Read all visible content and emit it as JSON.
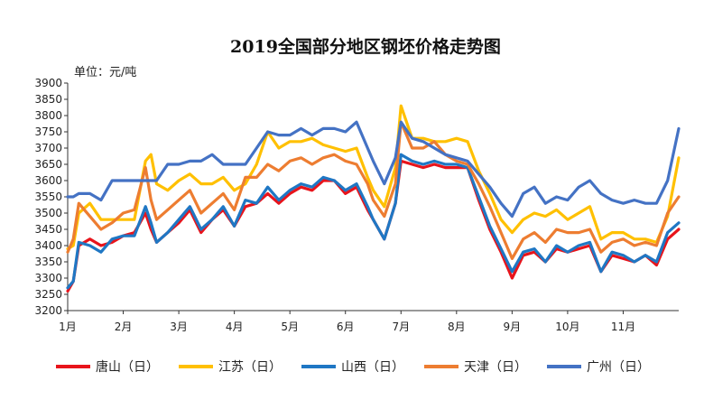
{
  "chart_data": {
    "type": "line",
    "title": "2019全国部分地区钢坯价格走势图",
    "ylabel": "单位：元/吨",
    "xlabel": "",
    "ylim": [
      3200,
      3900
    ],
    "yticks": [
      3200,
      3250,
      3300,
      3350,
      3400,
      3450,
      3500,
      3550,
      3600,
      3650,
      3700,
      3750,
      3800,
      3850,
      3900
    ],
    "x_month_range": [
      1,
      12
    ],
    "x_ticks": [
      {
        "label": "1月",
        "x": 1
      },
      {
        "label": "2月",
        "x": 2
      },
      {
        "label": "3月",
        "x": 3
      },
      {
        "label": "4月",
        "x": 4
      },
      {
        "label": "5月",
        "x": 5
      },
      {
        "label": "6月",
        "x": 6
      },
      {
        "label": "7月",
        "x": 7
      },
      {
        "label": "8月",
        "x": 8
      },
      {
        "label": "9月",
        "x": 9
      },
      {
        "label": "10月",
        "x": 10
      },
      {
        "label": "11月",
        "x": 11
      }
    ],
    "legend_position": "bottom",
    "grid": false,
    "series": [
      {
        "name": "唐山（日）",
        "color": "#e8141b",
        "x": [
          1.0,
          1.1,
          1.2,
          1.4,
          1.6,
          1.8,
          2.0,
          2.2,
          2.4,
          2.5,
          2.6,
          2.8,
          3.0,
          3.2,
          3.4,
          3.6,
          3.8,
          4.0,
          4.2,
          4.4,
          4.6,
          4.8,
          5.0,
          5.2,
          5.4,
          5.6,
          5.8,
          6.0,
          6.2,
          6.4,
          6.5,
          6.7,
          6.9,
          7.0,
          7.2,
          7.4,
          7.6,
          7.8,
          8.0,
          8.2,
          8.4,
          8.6,
          8.8,
          9.0,
          9.2,
          9.4,
          9.6,
          9.8,
          10.0,
          10.2,
          10.4,
          10.6,
          10.8,
          11.0,
          11.2,
          11.4,
          11.6,
          11.8,
          12.0
        ],
        "y": [
          3260,
          3290,
          3400,
          3420,
          3400,
          3410,
          3430,
          3440,
          3500,
          3450,
          3410,
          3440,
          3470,
          3510,
          3440,
          3480,
          3510,
          3460,
          3520,
          3530,
          3560,
          3530,
          3560,
          3580,
          3570,
          3600,
          3600,
          3560,
          3580,
          3510,
          3480,
          3420,
          3530,
          3660,
          3650,
          3640,
          3650,
          3640,
          3640,
          3640,
          3540,
          3450,
          3380,
          3300,
          3370,
          3380,
          3350,
          3390,
          3380,
          3390,
          3400,
          3320,
          3370,
          3360,
          3350,
          3370,
          3340,
          3420,
          3450
        ]
      },
      {
        "name": "江苏（日）",
        "color": "#ffc000",
        "x": [
          1.0,
          1.1,
          1.2,
          1.4,
          1.6,
          1.8,
          2.0,
          2.2,
          2.4,
          2.5,
          2.6,
          2.8,
          3.0,
          3.2,
          3.4,
          3.6,
          3.8,
          4.0,
          4.2,
          4.4,
          4.6,
          4.8,
          5.0,
          5.2,
          5.4,
          5.6,
          5.8,
          6.0,
          6.2,
          6.4,
          6.5,
          6.7,
          6.9,
          7.0,
          7.2,
          7.4,
          7.6,
          7.8,
          8.0,
          8.2,
          8.4,
          8.6,
          8.8,
          9.0,
          9.2,
          9.4,
          9.6,
          9.8,
          10.0,
          10.2,
          10.4,
          10.6,
          10.8,
          11.0,
          11.2,
          11.4,
          11.6,
          11.8,
          12.0
        ],
        "y": [
          3390,
          3400,
          3500,
          3530,
          3480,
          3480,
          3480,
          3480,
          3660,
          3680,
          3590,
          3570,
          3600,
          3620,
          3590,
          3590,
          3610,
          3570,
          3590,
          3650,
          3750,
          3700,
          3720,
          3720,
          3730,
          3710,
          3700,
          3690,
          3700,
          3610,
          3570,
          3520,
          3640,
          3830,
          3730,
          3730,
          3720,
          3720,
          3730,
          3720,
          3630,
          3560,
          3480,
          3440,
          3480,
          3500,
          3490,
          3510,
          3480,
          3500,
          3520,
          3420,
          3440,
          3440,
          3420,
          3420,
          3410,
          3490,
          3670
        ]
      },
      {
        "name": "山西（日）",
        "color": "#1f77c4",
        "x": [
          1.0,
          1.1,
          1.2,
          1.4,
          1.6,
          1.8,
          2.0,
          2.2,
          2.4,
          2.5,
          2.6,
          2.8,
          3.0,
          3.2,
          3.4,
          3.6,
          3.8,
          4.0,
          4.2,
          4.4,
          4.6,
          4.8,
          5.0,
          5.2,
          5.4,
          5.6,
          5.8,
          6.0,
          6.2,
          6.4,
          6.5,
          6.7,
          6.9,
          7.0,
          7.2,
          7.4,
          7.6,
          7.8,
          8.0,
          8.2,
          8.4,
          8.6,
          8.8,
          9.0,
          9.2,
          9.4,
          9.6,
          9.8,
          10.0,
          10.2,
          10.4,
          10.6,
          10.8,
          11.0,
          11.2,
          11.4,
          11.6,
          11.8,
          12.0
        ],
        "y": [
          3270,
          3290,
          3410,
          3400,
          3380,
          3420,
          3430,
          3430,
          3520,
          3470,
          3410,
          3440,
          3480,
          3520,
          3450,
          3480,
          3520,
          3460,
          3540,
          3530,
          3580,
          3540,
          3570,
          3590,
          3580,
          3610,
          3600,
          3570,
          3590,
          3520,
          3480,
          3420,
          3530,
          3680,
          3660,
          3650,
          3660,
          3650,
          3650,
          3640,
          3550,
          3460,
          3390,
          3320,
          3380,
          3390,
          3350,
          3400,
          3380,
          3400,
          3410,
          3320,
          3380,
          3370,
          3350,
          3370,
          3350,
          3440,
          3470
        ]
      },
      {
        "name": "天津（日）",
        "color": "#ed7d31",
        "x": [
          1.0,
          1.1,
          1.2,
          1.4,
          1.6,
          1.8,
          2.0,
          2.2,
          2.4,
          2.5,
          2.6,
          2.8,
          3.0,
          3.2,
          3.4,
          3.6,
          3.8,
          4.0,
          4.2,
          4.4,
          4.6,
          4.8,
          5.0,
          5.2,
          5.4,
          5.6,
          5.8,
          6.0,
          6.2,
          6.4,
          6.5,
          6.7,
          6.9,
          7.0,
          7.2,
          7.4,
          7.6,
          7.8,
          8.0,
          8.2,
          8.4,
          8.6,
          8.8,
          9.0,
          9.2,
          9.4,
          9.6,
          9.8,
          10.0,
          10.2,
          10.4,
          10.6,
          10.8,
          11.0,
          11.2,
          11.4,
          11.6,
          11.8,
          12.0
        ],
        "y": [
          3380,
          3420,
          3530,
          3490,
          3450,
          3470,
          3500,
          3510,
          3640,
          3540,
          3480,
          3510,
          3540,
          3570,
          3500,
          3530,
          3560,
          3510,
          3610,
          3610,
          3650,
          3630,
          3660,
          3670,
          3650,
          3670,
          3680,
          3660,
          3650,
          3590,
          3540,
          3490,
          3590,
          3780,
          3700,
          3700,
          3720,
          3680,
          3660,
          3650,
          3590,
          3520,
          3440,
          3360,
          3420,
          3440,
          3410,
          3450,
          3440,
          3440,
          3450,
          3380,
          3410,
          3420,
          3400,
          3410,
          3400,
          3500,
          3550
        ]
      },
      {
        "name": "广州（日）",
        "color": "#4472c4",
        "x": [
          1.0,
          1.1,
          1.2,
          1.4,
          1.6,
          1.8,
          2.0,
          2.2,
          2.4,
          2.5,
          2.6,
          2.8,
          3.0,
          3.2,
          3.4,
          3.6,
          3.8,
          4.0,
          4.2,
          4.4,
          4.6,
          4.8,
          5.0,
          5.2,
          5.4,
          5.6,
          5.8,
          6.0,
          6.2,
          6.4,
          6.5,
          6.7,
          6.9,
          7.0,
          7.2,
          7.4,
          7.6,
          7.8,
          8.0,
          8.2,
          8.4,
          8.6,
          8.8,
          9.0,
          9.2,
          9.4,
          9.6,
          9.8,
          10.0,
          10.2,
          10.4,
          10.6,
          10.8,
          11.0,
          11.2,
          11.4,
          11.6,
          11.8,
          12.0
        ],
        "y": [
          3550,
          3550,
          3560,
          3560,
          3540,
          3600,
          3600,
          3600,
          3600,
          3600,
          3600,
          3650,
          3650,
          3660,
          3660,
          3680,
          3650,
          3650,
          3650,
          3700,
          3750,
          3740,
          3740,
          3760,
          3740,
          3760,
          3760,
          3750,
          3780,
          3700,
          3660,
          3590,
          3670,
          3780,
          3730,
          3720,
          3700,
          3680,
          3670,
          3660,
          3620,
          3580,
          3530,
          3490,
          3560,
          3580,
          3530,
          3550,
          3540,
          3580,
          3600,
          3560,
          3540,
          3530,
          3540,
          3530,
          3530,
          3600,
          3760
        ]
      }
    ]
  }
}
